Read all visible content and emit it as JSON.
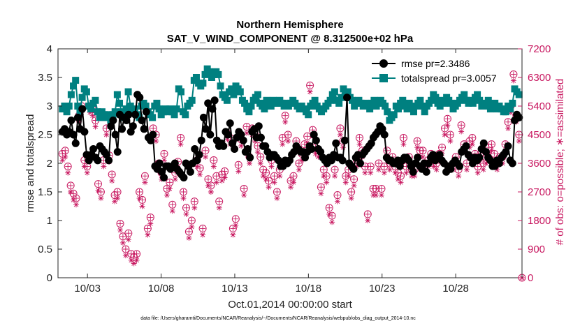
{
  "chart_data": {
    "type": "line",
    "title": [
      "Northern Hemisphere",
      "SAT_V_WIND_COMPONENT @ 8.312500e+02 hPa"
    ],
    "xlabel": "Oct.01,2014 00:00:00 start",
    "ylabel": "rmse and totalspread",
    "y2label": "# of obs: o=possible; ∗=assimilated",
    "footnote": "data file: /Users/gharamti/Documents/NCAR/Reanalysis/~/Documents/NCAR/Reanalysis/webpub/obs_diag_output_2014-10.nc",
    "xlim": [
      1,
      32.5
    ],
    "ylim": [
      0,
      4
    ],
    "y2lim": [
      0,
      7200
    ],
    "xticks": [
      3,
      8,
      13,
      18,
      23,
      28
    ],
    "xtick_labels": [
      "10/03",
      "10/08",
      "10/13",
      "10/18",
      "10/23",
      "10/28"
    ],
    "yticks": [
      0,
      0.5,
      1,
      1.5,
      2,
      2.5,
      3,
      3.5,
      4
    ],
    "ytick_labels": [
      "0",
      "0.5",
      "1",
      "1.5",
      "2",
      "2.5",
      "3",
      "3.5",
      "4"
    ],
    "y2ticks": [
      0,
      900,
      1800,
      2700,
      3600,
      4500,
      5400,
      6300,
      7200
    ],
    "y2tick_labels": [
      "0",
      "900",
      "1800",
      "2700",
      "3600",
      "4500",
      "5400",
      "6300",
      "7200"
    ],
    "legend": [
      "rmse pr=2.3486",
      "totalspread pr=3.0057"
    ],
    "colors": {
      "rmse": "#000000",
      "spread": "#008080",
      "obs": "#c81860",
      "axis": "#262626",
      "grid": "#bfbfbf"
    },
    "series": [
      {
        "name": "rmse",
        "values": [
          2.55,
          2.6,
          2.5,
          2.55,
          2.75,
          2.5,
          2.35,
          2.8,
          2.6,
          2.95,
          2.55,
          2.15,
          2.05,
          2.15,
          2.25,
          2.1,
          2.05,
          2.3,
          2.25,
          2.2,
          2.15,
          2.05,
          2.65,
          2.75,
          2.5,
          2.2,
          2.85,
          2.6,
          2.8,
          2.75,
          2.85,
          2.55,
          2.65,
          2.85,
          3.2,
          3.15,
          2.75,
          2.6,
          2.9,
          2.45,
          2.4,
          2.5,
          1.95,
          1.9,
          2.0,
          1.85,
          1.75,
          1.95,
          1.95,
          1.9,
          1.95,
          2.0,
          1.9,
          1.85,
          1.8,
          1.75,
          2.0,
          1.95,
          1.85,
          2.0,
          2.25,
          2.05,
          2.15,
          2.4,
          2.8,
          2.6,
          3.05,
          2.5,
          2.95,
          3.1,
          2.4,
          2.3,
          2.35,
          2.3,
          2.55,
          2.5,
          2.7,
          2.35,
          2.25,
          2.45,
          2.55,
          2.5,
          2.4,
          2.2,
          2.25,
          2.1,
          2.55,
          2.6,
          2.45,
          2.65,
          2.45,
          2.3,
          2.3,
          2.2,
          2.1,
          2.15,
          2.15,
          2.1,
          2.05,
          1.95,
          1.95,
          2.05,
          2.0,
          2.05,
          2.15,
          2.2,
          2.3,
          2.25,
          2.2,
          2.2,
          2.1,
          2.2,
          2.3,
          2.25,
          2.5,
          2.4,
          2.25,
          2.2,
          2.1,
          2.05,
          2.0,
          2.1,
          2.05,
          2.15,
          2.35,
          2.1,
          2.1,
          2.05,
          2.4,
          3.15,
          2.0,
          1.95,
          1.9,
          2.1,
          2.15,
          2.0,
          2.15,
          2.2,
          2.25,
          2.3,
          2.35,
          2.45,
          2.5,
          2.55,
          2.65,
          2.6,
          2.5,
          2.1,
          2.05,
          2.05,
          2.0,
          2.0,
          2.05,
          1.95,
          2.05,
          2.1,
          2.1,
          2.05,
          1.95,
          1.85,
          2.0,
          2.1,
          1.95,
          1.9,
          2.0,
          1.85,
          2.0,
          2.1,
          2.15,
          2.05,
          2.1,
          2.15,
          2.05,
          2.0,
          1.85,
          1.95,
          1.9,
          2.0,
          2.05,
          2.0,
          1.95,
          2.2,
          2.25,
          2.3,
          2.15,
          2.1,
          2.0,
          2.1,
          2.05,
          2.1,
          2.25,
          2.35,
          2.2,
          2.1,
          2.05,
          1.95,
          1.95,
          2.05,
          2.0,
          2.1,
          2.15,
          2.2,
          2.3,
          2.05,
          2.0,
          2.75,
          2.85,
          2.8
        ]
      },
      {
        "name": "totalspread",
        "values": [
          2.95,
          3.0,
          2.9,
          3.0,
          3.2,
          3.35,
          3.45,
          3.0,
          2.9,
          3.15,
          3.3,
          3.25,
          3.0,
          2.95,
          3.05,
          3.1,
          2.9,
          2.8,
          2.9,
          2.85,
          2.8,
          2.85,
          2.75,
          2.85,
          2.9,
          3.2,
          3.05,
          2.9,
          2.8,
          2.95,
          3.25,
          3.0,
          2.9,
          2.95,
          2.85,
          2.8,
          3.0,
          3.05,
          3.0,
          2.9,
          2.85,
          2.8,
          3.0,
          3.05,
          2.95,
          2.85,
          2.9,
          2.95,
          2.9,
          2.95,
          2.9,
          2.85,
          2.95,
          3.3,
          3.25,
          2.9,
          2.85,
          3.0,
          3.05,
          3.1,
          3.45,
          3.5,
          3.4,
          3.35,
          3.4,
          3.55,
          3.65,
          3.6,
          3.5,
          3.55,
          3.6,
          3.55,
          3.35,
          3.2,
          3.15,
          3.1,
          3.25,
          3.3,
          3.2,
          3.35,
          3.3,
          3.25,
          3.1,
          3.05,
          2.95,
          2.9,
          3.0,
          3.1,
          3.15,
          3.2,
          3.05,
          3.0,
          2.95,
          3.1,
          3.05,
          3.0,
          3.1,
          3.05,
          3.05,
          3.1,
          3.05,
          3.0,
          3.05,
          3.0,
          3.05,
          3.1,
          3.05,
          3.0,
          2.95,
          3.0,
          2.95,
          2.9,
          2.85,
          3.0,
          3.05,
          3.1,
          3.0,
          2.95,
          2.9,
          2.95,
          3.0,
          3.05,
          3.1,
          3.2,
          3.25,
          3.1,
          3.05,
          3.15,
          3.3,
          3.2,
          3.25,
          3.15,
          3.1,
          3.0,
          3.05,
          3.1,
          3.05,
          3.0,
          3.05,
          3.0,
          2.95,
          3.05,
          3.1,
          3.0,
          3.05,
          3.1,
          3.05,
          3.0,
          2.9,
          2.75,
          2.8,
          2.85,
          3.0,
          2.95,
          3.05,
          3.1,
          3.0,
          2.95,
          3.05,
          3.0,
          2.9,
          3.0,
          3.05,
          3.1,
          3.0,
          2.9,
          3.0,
          3.05,
          3.1,
          3.2,
          3.15,
          3.05,
          3.0,
          3.1,
          3.05,
          3.15,
          3.1,
          3.05,
          2.95,
          3.0,
          3.05,
          3.1,
          3.15,
          3.2,
          3.1,
          3.05,
          3.1,
          3.05,
          3.15,
          3.2,
          3.1,
          3.0,
          3.05,
          3.0,
          3.1,
          2.95,
          3.0,
          3.05,
          2.95,
          3.0,
          2.95,
          2.9,
          2.9,
          3.0,
          2.95,
          3.05,
          3.3,
          3.25,
          3.2
        ]
      },
      {
        "name": "obs_possible",
        "values": [
          3900,
          4000,
          3500,
          2900,
          2650,
          2500,
          5100,
          5400,
          3700,
          3500,
          5400,
          5300,
          4950,
          2950,
          2700,
          3700,
          4700,
          3850,
          3250,
          2600,
          2700,
          1700,
          1300,
          900,
          1400,
          750,
          650,
          750,
          2700,
          2450,
          3200,
          1550,
          1900,
          4700,
          4500,
          3600,
          3300,
          3900,
          2800,
          3000,
          2300,
          3300,
          3650,
          4400,
          2700,
          2200,
          1450,
          1800,
          2400,
          3700,
          3450,
          1550,
          4000,
          3100,
          2900,
          3700,
          3200,
          2400,
          3250,
          3350,
          4550,
          4400,
          1550,
          1850,
          3550,
          4350,
          2800,
          4750,
          3800,
          4700,
          4500,
          4150,
          3800,
          3400,
          3300,
          3050,
          3700,
          3200,
          2700,
          3400,
          4400,
          5100,
          4500,
          3050,
          3200,
          4300,
          3600,
          3900,
          4200,
          4450,
          6050,
          4650,
          4100,
          4000,
          2850,
          3400,
          3200,
          2200,
          1950,
          3400,
          2600,
          4700,
          4300,
          3200,
          3400,
          2700,
          3100,
          3700,
          4400,
          4000,
          3500,
          2000,
          3500,
          2800,
          2800,
          3600,
          2800,
          3500,
          4000,
          3600,
          3800,
          3500,
          3300,
          3200,
          4400,
          3500,
          3800,
          3400,
          3400,
          4300,
          4000,
          4000,
          3600,
          3700,
          3900,
          3700,
          3600,
          3900,
          4100,
          4700,
          5000,
          4500,
          3600,
          3800,
          3400,
          4800,
          4200,
          3600,
          4300,
          4400,
          3900,
          3500,
          3900,
          3600,
          3800,
          4100,
          4200,
          3900,
          3600,
          3800,
          3800,
          4200,
          4900,
          5400,
          6400,
          5100,
          4500
        ]
      },
      {
        "name": "obs_assimilated",
        "values": [
          3700,
          3800,
          3300,
          2700,
          2450,
          2300,
          4900,
          5200,
          3500,
          3300,
          5200,
          5100,
          4750,
          2750,
          2500,
          3500,
          4500,
          3650,
          3050,
          2400,
          2500,
          1500,
          1100,
          700,
          1200,
          550,
          450,
          550,
          2500,
          2250,
          3000,
          1350,
          1700,
          4500,
          4300,
          3400,
          3100,
          3700,
          2600,
          2800,
          2100,
          3100,
          3450,
          4200,
          2500,
          2000,
          1250,
          1600,
          2200,
          3500,
          3250,
          1350,
          3800,
          2900,
          2700,
          3500,
          3000,
          2200,
          3050,
          3150,
          4350,
          4200,
          1350,
          1650,
          3350,
          4150,
          2600,
          4550,
          3600,
          4500,
          4300,
          3950,
          3600,
          3200,
          3100,
          2850,
          3500,
          3000,
          2500,
          3200,
          4200,
          4900,
          4300,
          2850,
          3000,
          4100,
          3400,
          3700,
          4000,
          4250,
          5850,
          4450,
          3900,
          3800,
          2650,
          3200,
          3000,
          2000,
          1750,
          3200,
          2400,
          4500,
          4100,
          3000,
          3200,
          2500,
          2900,
          3500,
          4200,
          3800,
          3300,
          1800,
          3300,
          2600,
          2600,
          3400,
          2600,
          3300,
          3800,
          3400,
          3600,
          3300,
          3100,
          3000,
          4200,
          3300,
          3600,
          3200,
          3200,
          4100,
          3800,
          3800,
          3400,
          3500,
          3700,
          3500,
          3400,
          3700,
          3900,
          4500,
          4800,
          4300,
          3400,
          3600,
          3200,
          4600,
          4000,
          3400,
          4100,
          4200,
          3700,
          3300,
          3700,
          3400,
          3600,
          3900,
          4000,
          3700,
          3400,
          3600,
          3600,
          4000,
          4700,
          5200,
          6200,
          4900,
          4300
        ]
      }
    ]
  }
}
